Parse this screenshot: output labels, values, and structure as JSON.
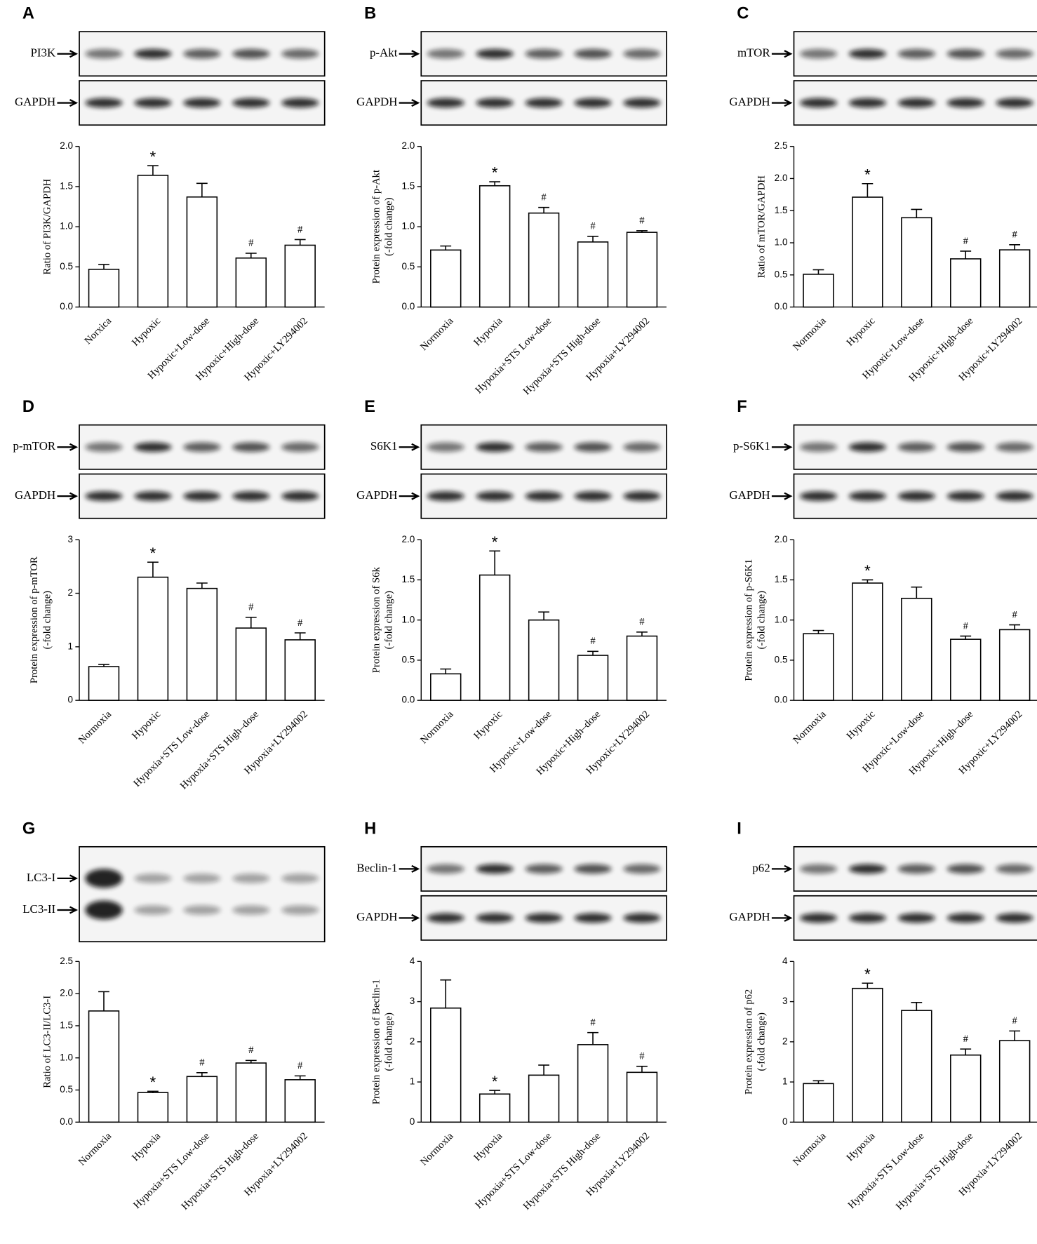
{
  "chart_data": [
    {
      "type": "bar",
      "panel": "A",
      "blots": [
        [
          "PI3K"
        ],
        [
          "GAPDH"
        ]
      ],
      "ylabel": [
        "Ratio of PI3K/GAPDH"
      ],
      "categories": [
        "Norxica",
        "Hypoxic",
        "Hypoxic+Low-dose",
        "Hypoxic+High-dose",
        "Hypoxic+LY294002"
      ],
      "values": [
        0.47,
        1.64,
        1.37,
        0.61,
        0.77
      ],
      "errors": [
        0.06,
        0.12,
        0.17,
        0.06,
        0.07
      ],
      "annotations": [
        null,
        "*",
        null,
        "#",
        "#"
      ],
      "ylim": [
        0,
        2
      ],
      "yticks": [
        {
          "value": 0,
          "label": "0.0"
        },
        0.5,
        {
          "value": 1,
          "label": "1.0"
        },
        1.5,
        {
          "value": 2,
          "label": "2.0"
        }
      ]
    },
    {
      "type": "bar",
      "panel": "B",
      "blots": [
        [
          "p-Akt"
        ],
        [
          "GAPDH"
        ]
      ],
      "ylabel": [
        "Protein expression of p-Akt",
        "(-fold change)"
      ],
      "categories": [
        "Normoxia",
        "Hypoxia",
        "Hypoxia+STS Low-dose",
        "Hypoxia+STS High-dose",
        "Hypoxia+LY294002"
      ],
      "values": [
        0.71,
        1.51,
        1.17,
        0.81,
        0.93
      ],
      "errors": [
        0.05,
        0.05,
        0.07,
        0.07,
        0.02
      ],
      "annotations": [
        null,
        "*",
        "#",
        "#",
        "#"
      ],
      "ylim": [
        0,
        2
      ],
      "yticks": [
        {
          "value": 0,
          "label": "0.0"
        },
        0.5,
        {
          "value": 1,
          "label": "1.0"
        },
        1.5,
        {
          "value": 2,
          "label": "2.0"
        }
      ]
    },
    {
      "type": "bar",
      "panel": "C",
      "blots": [
        [
          "mTOR"
        ],
        [
          "GAPDH"
        ]
      ],
      "ylabel": [
        "Ratio of mTOR/GAPDH"
      ],
      "categories": [
        "Normoxia",
        "Hypoxic",
        "Hypoxic+Low-dose",
        "Hypoxic+High–dose",
        "Hypoxic+LY294002"
      ],
      "values": [
        0.51,
        1.71,
        1.39,
        0.75,
        0.89
      ],
      "errors": [
        0.07,
        0.21,
        0.13,
        0.12,
        0.08
      ],
      "annotations": [
        null,
        "*",
        null,
        "#",
        "#"
      ],
      "ylim": [
        0,
        2.5
      ],
      "yticks": [
        {
          "value": 0,
          "label": "0.0"
        },
        0.5,
        {
          "value": 1,
          "label": "1.0"
        },
        1.5,
        {
          "value": 2,
          "label": "2.0"
        },
        2.5
      ]
    },
    {
      "type": "bar",
      "panel": "D",
      "blots": [
        [
          "p-mTOR"
        ],
        [
          "GAPDH"
        ]
      ],
      "ylabel": [
        "Protein expression of p-mTOR",
        "(-fold change)"
      ],
      "categories": [
        "Normoxia",
        "Hypoxic",
        "Hypoxia+STS Low-dose",
        "Hypoxia+STS High–dose",
        "Hypoxia+LY294002"
      ],
      "values": [
        0.63,
        2.3,
        2.09,
        1.35,
        1.13
      ],
      "errors": [
        0.04,
        0.28,
        0.1,
        0.2,
        0.13
      ],
      "annotations": [
        null,
        "*",
        null,
        "#",
        "#"
      ],
      "ylim": [
        0,
        3
      ],
      "yticks": [
        0,
        1,
        2,
        3
      ]
    },
    {
      "type": "bar",
      "panel": "E",
      "blots": [
        [
          "S6K1"
        ],
        [
          "GAPDH"
        ]
      ],
      "ylabel": [
        "Protein expression of S6k",
        "(-fold change)"
      ],
      "categories": [
        "Normoxia",
        "Hypoxic",
        "Hypoxic+Low-dose",
        "Hypoxic+High–dose",
        "Hypoxic+LY294002"
      ],
      "values": [
        0.33,
        1.56,
        1.0,
        0.56,
        0.8
      ],
      "errors": [
        0.06,
        0.3,
        0.1,
        0.05,
        0.05
      ],
      "annotations": [
        null,
        "*",
        null,
        "#",
        "#"
      ],
      "ylim": [
        0,
        2
      ],
      "yticks": [
        {
          "value": 0,
          "label": "0.0"
        },
        0.5,
        {
          "value": 1,
          "label": "1.0"
        },
        1.5,
        {
          "value": 2,
          "label": "2.0"
        }
      ]
    },
    {
      "type": "bar",
      "panel": "F",
      "blots": [
        [
          "p-S6K1"
        ],
        [
          "GAPDH"
        ]
      ],
      "ylabel": [
        "Protein expression of p-S6K1",
        "(-fold change)"
      ],
      "categories": [
        "Normoxia",
        "Hypoxic",
        "Hypoxic+Low-dose",
        "Hypoxic+High–dose",
        "Hypoxic+LY294002"
      ],
      "values": [
        0.83,
        1.46,
        1.27,
        0.76,
        0.88
      ],
      "errors": [
        0.04,
        0.04,
        0.14,
        0.04,
        0.06
      ],
      "annotations": [
        null,
        "*",
        null,
        "#",
        "#"
      ],
      "ylim": [
        0,
        2
      ],
      "yticks": [
        {
          "value": 0,
          "label": "0.0"
        },
        0.5,
        {
          "value": 1,
          "label": "1.0"
        },
        1.5,
        {
          "value": 2,
          "label": "2.0"
        }
      ]
    },
    {
      "type": "bar",
      "panel": "G",
      "blots": [
        [
          "LC3-I",
          "LC3-II"
        ]
      ],
      "ylabel": [
        "Ratio of LC3-II/LC3-I"
      ],
      "categories": [
        "Normoxia",
        "Hypoxia",
        "Hypoxia+STS Low-dose",
        "Hypoxia+STS High-dose",
        "Hypoxia+LY294002"
      ],
      "values": [
        1.73,
        0.46,
        0.71,
        0.92,
        0.66
      ],
      "errors": [
        0.3,
        0.02,
        0.06,
        0.04,
        0.06
      ],
      "annotations": [
        null,
        "*",
        "#",
        "#",
        "#"
      ],
      "ylim": [
        0,
        2.5
      ],
      "yticks": [
        {
          "value": 0,
          "label": "0.0"
        },
        0.5,
        {
          "value": 1,
          "label": "1.0"
        },
        1.5,
        {
          "value": 2,
          "label": "2.0"
        },
        2.5
      ]
    },
    {
      "type": "bar",
      "panel": "H",
      "blots": [
        [
          "Beclin-1"
        ],
        [
          "GAPDH"
        ]
      ],
      "ylabel": [
        "Protein expression of Beclin-1",
        "(-fold change)"
      ],
      "categories": [
        "Normoxia",
        "Hypoxia",
        "Hypoxia+STS Low-dose",
        "Hypoxia+STS High-dose",
        "Hypoxia+LY294002"
      ],
      "values": [
        2.84,
        0.7,
        1.17,
        1.93,
        1.24
      ],
      "errors": [
        0.7,
        0.09,
        0.25,
        0.3,
        0.15
      ],
      "annotations": [
        null,
        "*",
        null,
        "#",
        "#"
      ],
      "ylim": [
        0,
        4
      ],
      "yticks": [
        0,
        1,
        2,
        3,
        4
      ]
    },
    {
      "type": "bar",
      "panel": "I",
      "blots": [
        [
          "p62"
        ],
        [
          "GAPDH"
        ]
      ],
      "ylabel": [
        "Protein expression of p62",
        "(-fold change)"
      ],
      "categories": [
        "Normoxia",
        "Hypoxia",
        "Hypoxia+STS Low-dose",
        "Hypoxia+STS High-dose",
        "Hypoxia+LY294002"
      ],
      "values": [
        0.96,
        3.33,
        2.78,
        1.67,
        2.03
      ],
      "errors": [
        0.07,
        0.13,
        0.2,
        0.15,
        0.24
      ],
      "annotations": [
        null,
        "*",
        null,
        "#",
        "#"
      ],
      "ylim": [
        0,
        4
      ],
      "yticks": [
        0,
        1,
        2,
        3,
        4
      ]
    }
  ]
}
